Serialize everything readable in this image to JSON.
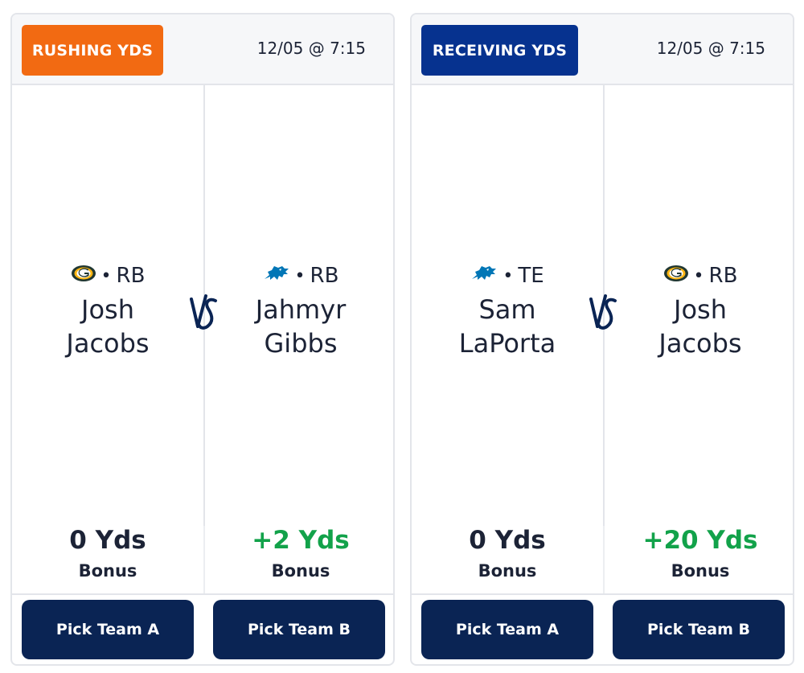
{
  "cards": [
    {
      "category": "RUSHING YDS",
      "category_color": "#f26a12",
      "game_time": "12/05 @ 7:15",
      "vs_label": "VS",
      "team_a": {
        "team_logo": "packers-logo-icon",
        "separator": "•",
        "position": "RB",
        "first_name": "Josh",
        "last_name": "Jacobs",
        "yds": "0 Yds",
        "bonus": "Bonus",
        "button": "Pick Team A"
      },
      "team_b": {
        "team_logo": "lions-logo-icon",
        "separator": "•",
        "position": "RB",
        "first_name": "Jahmyr",
        "last_name": "Gibbs",
        "yds": "+2 Yds",
        "bonus": "Bonus",
        "button": "Pick Team B"
      }
    },
    {
      "category": "RECEIVING YDS",
      "category_color": "#06328f",
      "game_time": "12/05 @ 7:15",
      "vs_label": "VS",
      "team_a": {
        "team_logo": "lions-logo-icon",
        "separator": "•",
        "position": "TE",
        "first_name": "Sam",
        "last_name": "LaPorta",
        "yds": "0 Yds",
        "bonus": "Bonus",
        "button": "Pick Team A"
      },
      "team_b": {
        "team_logo": "packers-logo-icon",
        "separator": "•",
        "position": "RB",
        "first_name": "Josh",
        "last_name": "Jacobs",
        "yds": "+20 Yds",
        "bonus": "Bonus",
        "button": "Pick Team B"
      }
    }
  ],
  "colors": {
    "bonus_green": "#12a24a",
    "button_navy": "#0a2454",
    "text_dark": "#1c2336"
  }
}
